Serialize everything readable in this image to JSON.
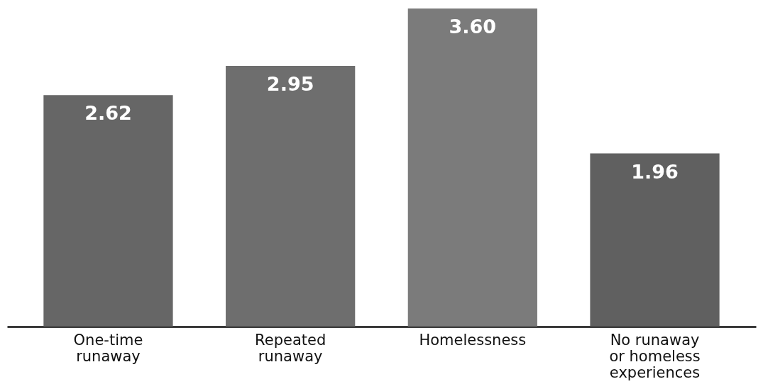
{
  "chart_data": {
    "type": "bar",
    "categories": [
      "One-time\nrunaway",
      "Repeated\nrunaway",
      "Homelessness",
      "No runaway\nor homeless\nexperiences"
    ],
    "values": [
      2.62,
      2.95,
      3.6,
      1.96
    ],
    "colors": [
      "#666666",
      "#6e6e6e",
      "#7b7b7b",
      "#606060"
    ],
    "value_labels": [
      "2.62",
      "2.95",
      "3.60",
      "1.96"
    ]
  }
}
